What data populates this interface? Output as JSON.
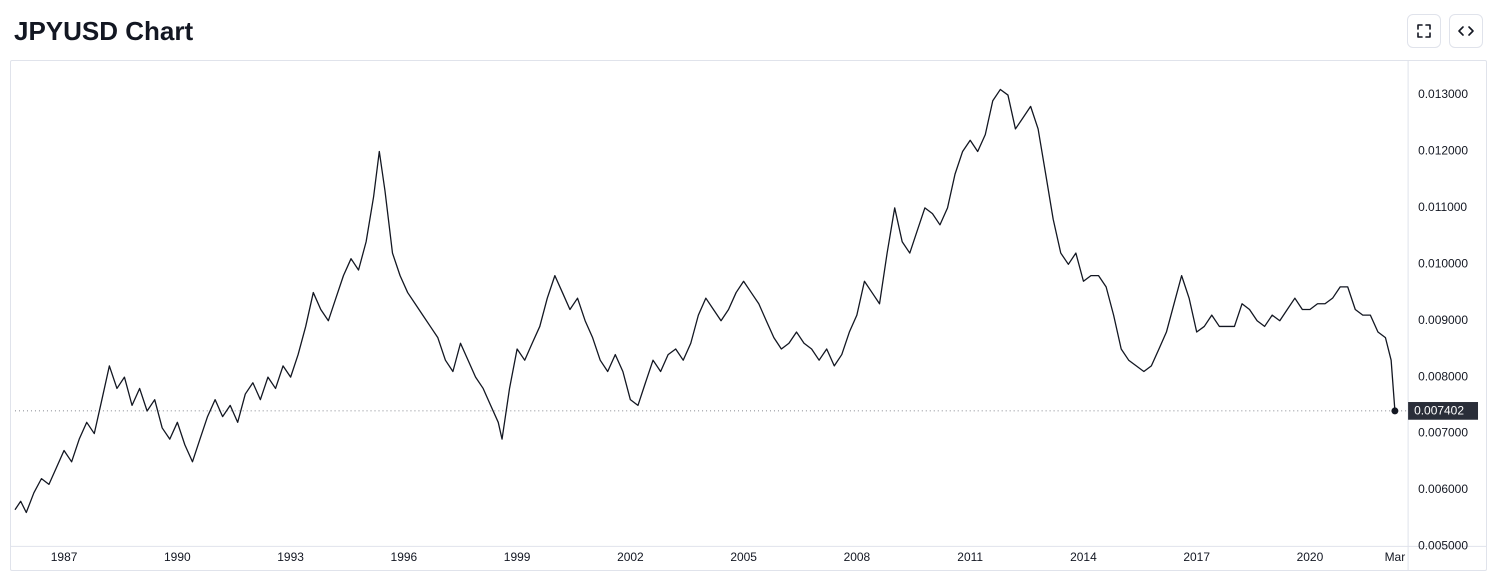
{
  "header": {
    "title": "JPYUSD Chart"
  },
  "chart": {
    "type": "line",
    "background_color": "#ffffff",
    "border_color": "#e0e3eb",
    "line_color": "#131722",
    "line_width": 1.3,
    "text_color": "#131722",
    "tick_fontsize": 12,
    "y_axis": {
      "min": 0.005,
      "max": 0.0135,
      "ticks": [
        {
          "v": 0.005,
          "label": "0.005000"
        },
        {
          "v": 0.006,
          "label": "0.006000"
        },
        {
          "v": 0.007,
          "label": "0.007000"
        },
        {
          "v": 0.008,
          "label": "0.008000"
        },
        {
          "v": 0.009,
          "label": "0.009000"
        },
        {
          "v": 0.01,
          "label": "0.010000"
        },
        {
          "v": 0.011,
          "label": "0.011000"
        },
        {
          "v": 0.012,
          "label": "0.012000"
        },
        {
          "v": 0.013,
          "label": "0.013000"
        }
      ]
    },
    "x_axis": {
      "min": 1985.7,
      "max": 2022.6,
      "ticks": [
        {
          "v": 1987,
          "label": "1987"
        },
        {
          "v": 1990,
          "label": "1990"
        },
        {
          "v": 1993,
          "label": "1993"
        },
        {
          "v": 1996,
          "label": "1996"
        },
        {
          "v": 1999,
          "label": "1999"
        },
        {
          "v": 2002,
          "label": "2002"
        },
        {
          "v": 2005,
          "label": "2005"
        },
        {
          "v": 2008,
          "label": "2008"
        },
        {
          "v": 2011,
          "label": "2011"
        },
        {
          "v": 2014,
          "label": "2014"
        },
        {
          "v": 2017,
          "label": "2017"
        },
        {
          "v": 2020,
          "label": "2020"
        },
        {
          "v": 2022.25,
          "label": "Mar"
        }
      ]
    },
    "current": {
      "value": 0.007402,
      "label": "0.007402",
      "tag_bg": "#2a2e39",
      "tag_text_color": "#ffffff",
      "dash_color": "#5d606b"
    },
    "series": [
      {
        "x": 1985.7,
        "y": 0.00565
      },
      {
        "x": 1985.85,
        "y": 0.0058
      },
      {
        "x": 1986.0,
        "y": 0.0056
      },
      {
        "x": 1986.2,
        "y": 0.00595
      },
      {
        "x": 1986.4,
        "y": 0.0062
      },
      {
        "x": 1986.6,
        "y": 0.0061
      },
      {
        "x": 1986.8,
        "y": 0.0064
      },
      {
        "x": 1987.0,
        "y": 0.0067
      },
      {
        "x": 1987.2,
        "y": 0.0065
      },
      {
        "x": 1987.4,
        "y": 0.0069
      },
      {
        "x": 1987.6,
        "y": 0.0072
      },
      {
        "x": 1987.8,
        "y": 0.007
      },
      {
        "x": 1988.0,
        "y": 0.0076
      },
      {
        "x": 1988.2,
        "y": 0.0082
      },
      {
        "x": 1988.4,
        "y": 0.0078
      },
      {
        "x": 1988.6,
        "y": 0.008
      },
      {
        "x": 1988.8,
        "y": 0.0075
      },
      {
        "x": 1989.0,
        "y": 0.0078
      },
      {
        "x": 1989.2,
        "y": 0.0074
      },
      {
        "x": 1989.4,
        "y": 0.0076
      },
      {
        "x": 1989.6,
        "y": 0.0071
      },
      {
        "x": 1989.8,
        "y": 0.0069
      },
      {
        "x": 1990.0,
        "y": 0.0072
      },
      {
        "x": 1990.2,
        "y": 0.0068
      },
      {
        "x": 1990.4,
        "y": 0.0065
      },
      {
        "x": 1990.6,
        "y": 0.0069
      },
      {
        "x": 1990.8,
        "y": 0.0073
      },
      {
        "x": 1991.0,
        "y": 0.0076
      },
      {
        "x": 1991.2,
        "y": 0.0073
      },
      {
        "x": 1991.4,
        "y": 0.0075
      },
      {
        "x": 1991.6,
        "y": 0.0072
      },
      {
        "x": 1991.8,
        "y": 0.0077
      },
      {
        "x": 1992.0,
        "y": 0.0079
      },
      {
        "x": 1992.2,
        "y": 0.0076
      },
      {
        "x": 1992.4,
        "y": 0.008
      },
      {
        "x": 1992.6,
        "y": 0.0078
      },
      {
        "x": 1992.8,
        "y": 0.0082
      },
      {
        "x": 1993.0,
        "y": 0.008
      },
      {
        "x": 1993.2,
        "y": 0.0084
      },
      {
        "x": 1993.4,
        "y": 0.0089
      },
      {
        "x": 1993.6,
        "y": 0.0095
      },
      {
        "x": 1993.8,
        "y": 0.0092
      },
      {
        "x": 1994.0,
        "y": 0.009
      },
      {
        "x": 1994.2,
        "y": 0.0094
      },
      {
        "x": 1994.4,
        "y": 0.0098
      },
      {
        "x": 1994.6,
        "y": 0.0101
      },
      {
        "x": 1994.8,
        "y": 0.0099
      },
      {
        "x": 1995.0,
        "y": 0.0104
      },
      {
        "x": 1995.2,
        "y": 0.0112
      },
      {
        "x": 1995.35,
        "y": 0.012
      },
      {
        "x": 1995.5,
        "y": 0.0113
      },
      {
        "x": 1995.7,
        "y": 0.0102
      },
      {
        "x": 1995.9,
        "y": 0.0098
      },
      {
        "x": 1996.1,
        "y": 0.0095
      },
      {
        "x": 1996.3,
        "y": 0.0093
      },
      {
        "x": 1996.5,
        "y": 0.0091
      },
      {
        "x": 1996.7,
        "y": 0.0089
      },
      {
        "x": 1996.9,
        "y": 0.0087
      },
      {
        "x": 1997.1,
        "y": 0.0083
      },
      {
        "x": 1997.3,
        "y": 0.0081
      },
      {
        "x": 1997.5,
        "y": 0.0086
      },
      {
        "x": 1997.7,
        "y": 0.0083
      },
      {
        "x": 1997.9,
        "y": 0.008
      },
      {
        "x": 1998.1,
        "y": 0.0078
      },
      {
        "x": 1998.3,
        "y": 0.0075
      },
      {
        "x": 1998.5,
        "y": 0.0072
      },
      {
        "x": 1998.6,
        "y": 0.0069
      },
      {
        "x": 1998.8,
        "y": 0.0078
      },
      {
        "x": 1999.0,
        "y": 0.0085
      },
      {
        "x": 1999.2,
        "y": 0.0083
      },
      {
        "x": 1999.4,
        "y": 0.0086
      },
      {
        "x": 1999.6,
        "y": 0.0089
      },
      {
        "x": 1999.8,
        "y": 0.0094
      },
      {
        "x": 2000.0,
        "y": 0.0098
      },
      {
        "x": 2000.2,
        "y": 0.0095
      },
      {
        "x": 2000.4,
        "y": 0.0092
      },
      {
        "x": 2000.6,
        "y": 0.0094
      },
      {
        "x": 2000.8,
        "y": 0.009
      },
      {
        "x": 2001.0,
        "y": 0.0087
      },
      {
        "x": 2001.2,
        "y": 0.0083
      },
      {
        "x": 2001.4,
        "y": 0.0081
      },
      {
        "x": 2001.6,
        "y": 0.0084
      },
      {
        "x": 2001.8,
        "y": 0.0081
      },
      {
        "x": 2002.0,
        "y": 0.0076
      },
      {
        "x": 2002.2,
        "y": 0.0075
      },
      {
        "x": 2002.4,
        "y": 0.0079
      },
      {
        "x": 2002.6,
        "y": 0.0083
      },
      {
        "x": 2002.8,
        "y": 0.0081
      },
      {
        "x": 2003.0,
        "y": 0.0084
      },
      {
        "x": 2003.2,
        "y": 0.0085
      },
      {
        "x": 2003.4,
        "y": 0.0083
      },
      {
        "x": 2003.6,
        "y": 0.0086
      },
      {
        "x": 2003.8,
        "y": 0.0091
      },
      {
        "x": 2004.0,
        "y": 0.0094
      },
      {
        "x": 2004.2,
        "y": 0.0092
      },
      {
        "x": 2004.4,
        "y": 0.009
      },
      {
        "x": 2004.6,
        "y": 0.0092
      },
      {
        "x": 2004.8,
        "y": 0.0095
      },
      {
        "x": 2005.0,
        "y": 0.0097
      },
      {
        "x": 2005.2,
        "y": 0.0095
      },
      {
        "x": 2005.4,
        "y": 0.0093
      },
      {
        "x": 2005.6,
        "y": 0.009
      },
      {
        "x": 2005.8,
        "y": 0.0087
      },
      {
        "x": 2006.0,
        "y": 0.0085
      },
      {
        "x": 2006.2,
        "y": 0.0086
      },
      {
        "x": 2006.4,
        "y": 0.0088
      },
      {
        "x": 2006.6,
        "y": 0.0086
      },
      {
        "x": 2006.8,
        "y": 0.0085
      },
      {
        "x": 2007.0,
        "y": 0.0083
      },
      {
        "x": 2007.2,
        "y": 0.0085
      },
      {
        "x": 2007.4,
        "y": 0.0082
      },
      {
        "x": 2007.6,
        "y": 0.0084
      },
      {
        "x": 2007.8,
        "y": 0.0088
      },
      {
        "x": 2008.0,
        "y": 0.0091
      },
      {
        "x": 2008.2,
        "y": 0.0097
      },
      {
        "x": 2008.4,
        "y": 0.0095
      },
      {
        "x": 2008.6,
        "y": 0.0093
      },
      {
        "x": 2008.8,
        "y": 0.0102
      },
      {
        "x": 2009.0,
        "y": 0.011
      },
      {
        "x": 2009.2,
        "y": 0.0104
      },
      {
        "x": 2009.4,
        "y": 0.0102
      },
      {
        "x": 2009.6,
        "y": 0.0106
      },
      {
        "x": 2009.8,
        "y": 0.011
      },
      {
        "x": 2010.0,
        "y": 0.0109
      },
      {
        "x": 2010.2,
        "y": 0.0107
      },
      {
        "x": 2010.4,
        "y": 0.011
      },
      {
        "x": 2010.6,
        "y": 0.0116
      },
      {
        "x": 2010.8,
        "y": 0.012
      },
      {
        "x": 2011.0,
        "y": 0.0122
      },
      {
        "x": 2011.2,
        "y": 0.012
      },
      {
        "x": 2011.4,
        "y": 0.0123
      },
      {
        "x": 2011.6,
        "y": 0.0129
      },
      {
        "x": 2011.8,
        "y": 0.0131
      },
      {
        "x": 2012.0,
        "y": 0.013
      },
      {
        "x": 2012.2,
        "y": 0.0124
      },
      {
        "x": 2012.4,
        "y": 0.0126
      },
      {
        "x": 2012.6,
        "y": 0.0128
      },
      {
        "x": 2012.8,
        "y": 0.0124
      },
      {
        "x": 2013.0,
        "y": 0.0116
      },
      {
        "x": 2013.2,
        "y": 0.0108
      },
      {
        "x": 2013.4,
        "y": 0.0102
      },
      {
        "x": 2013.6,
        "y": 0.01
      },
      {
        "x": 2013.8,
        "y": 0.0102
      },
      {
        "x": 2014.0,
        "y": 0.0097
      },
      {
        "x": 2014.2,
        "y": 0.0098
      },
      {
        "x": 2014.4,
        "y": 0.0098
      },
      {
        "x": 2014.6,
        "y": 0.0096
      },
      {
        "x": 2014.8,
        "y": 0.0091
      },
      {
        "x": 2015.0,
        "y": 0.0085
      },
      {
        "x": 2015.2,
        "y": 0.0083
      },
      {
        "x": 2015.4,
        "y": 0.0082
      },
      {
        "x": 2015.6,
        "y": 0.0081
      },
      {
        "x": 2015.8,
        "y": 0.0082
      },
      {
        "x": 2016.0,
        "y": 0.0085
      },
      {
        "x": 2016.2,
        "y": 0.0088
      },
      {
        "x": 2016.4,
        "y": 0.0093
      },
      {
        "x": 2016.6,
        "y": 0.0098
      },
      {
        "x": 2016.8,
        "y": 0.0094
      },
      {
        "x": 2017.0,
        "y": 0.0088
      },
      {
        "x": 2017.2,
        "y": 0.0089
      },
      {
        "x": 2017.4,
        "y": 0.0091
      },
      {
        "x": 2017.6,
        "y": 0.0089
      },
      {
        "x": 2017.8,
        "y": 0.0089
      },
      {
        "x": 2018.0,
        "y": 0.0089
      },
      {
        "x": 2018.2,
        "y": 0.0093
      },
      {
        "x": 2018.4,
        "y": 0.0092
      },
      {
        "x": 2018.6,
        "y": 0.009
      },
      {
        "x": 2018.8,
        "y": 0.0089
      },
      {
        "x": 2019.0,
        "y": 0.0091
      },
      {
        "x": 2019.2,
        "y": 0.009
      },
      {
        "x": 2019.4,
        "y": 0.0092
      },
      {
        "x": 2019.6,
        "y": 0.0094
      },
      {
        "x": 2019.8,
        "y": 0.0092
      },
      {
        "x": 2020.0,
        "y": 0.0092
      },
      {
        "x": 2020.2,
        "y": 0.0093
      },
      {
        "x": 2020.4,
        "y": 0.0093
      },
      {
        "x": 2020.6,
        "y": 0.0094
      },
      {
        "x": 2020.8,
        "y": 0.0096
      },
      {
        "x": 2021.0,
        "y": 0.0096
      },
      {
        "x": 2021.2,
        "y": 0.0092
      },
      {
        "x": 2021.4,
        "y": 0.0091
      },
      {
        "x": 2021.6,
        "y": 0.0091
      },
      {
        "x": 2021.8,
        "y": 0.0088
      },
      {
        "x": 2022.0,
        "y": 0.0087
      },
      {
        "x": 2022.15,
        "y": 0.0083
      },
      {
        "x": 2022.25,
        "y": 0.007402
      }
    ]
  }
}
